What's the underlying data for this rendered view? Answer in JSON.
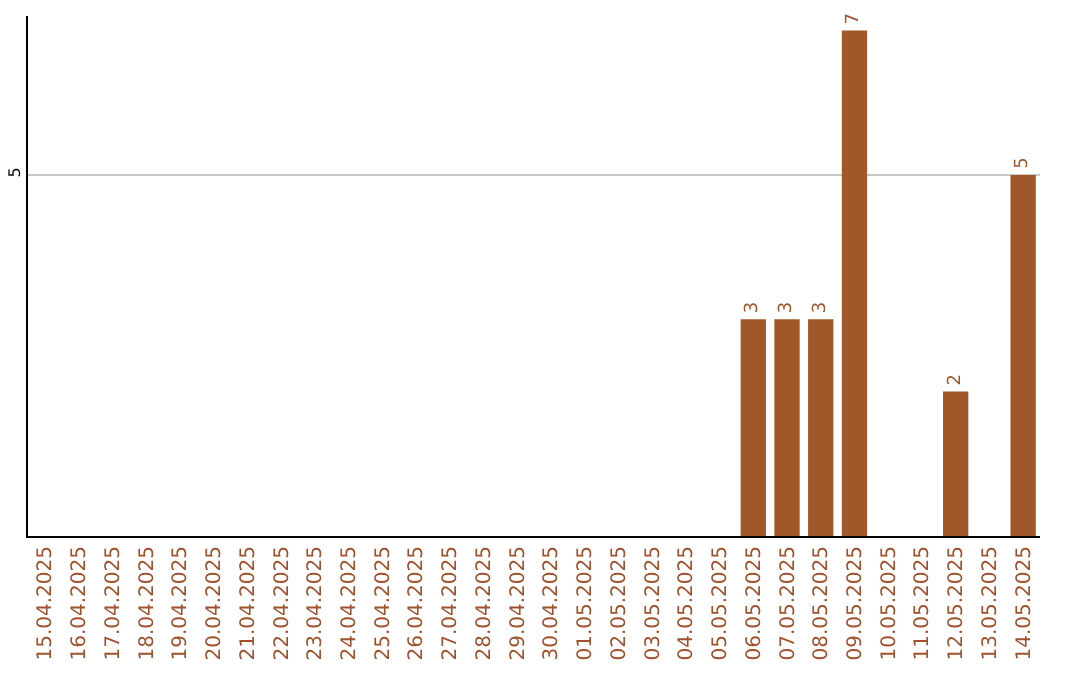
{
  "chart_data": {
    "type": "bar",
    "categories": [
      "15.04.2025",
      "16.04.2025",
      "17.04.2025",
      "18.04.2025",
      "19.04.2025",
      "20.04.2025",
      "21.04.2025",
      "22.04.2025",
      "23.04.2025",
      "24.04.2025",
      "25.04.2025",
      "26.04.2025",
      "27.04.2025",
      "28.04.2025",
      "29.04.2025",
      "30.04.2025",
      "01.05.2025",
      "02.05.2025",
      "03.05.2025",
      "04.05.2025",
      "05.05.2025",
      "06.05.2025",
      "07.05.2025",
      "08.05.2025",
      "09.05.2025",
      "10.05.2025",
      "11.05.2025",
      "12.05.2025",
      "13.05.2025",
      "14.05.2025"
    ],
    "values": [
      null,
      null,
      null,
      null,
      null,
      null,
      null,
      null,
      null,
      null,
      null,
      null,
      null,
      null,
      null,
      null,
      null,
      null,
      null,
      null,
      null,
      3,
      3,
      3,
      7,
      null,
      null,
      2,
      null,
      5
    ],
    "color": "#a0582a",
    "ylim": [
      0,
      7.2
    ],
    "yticks": [
      5
    ],
    "grid": "y",
    "data_labels": true
  }
}
